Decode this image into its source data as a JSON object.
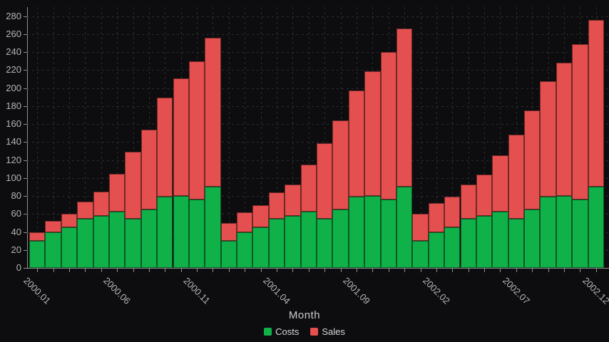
{
  "chart_data": {
    "type": "bar",
    "stacked": true,
    "title": "",
    "xlabel": "Month",
    "ylabel": "",
    "grid": true,
    "legend_position": "bottom",
    "ylim": [
      0,
      290
    ],
    "y_ticks": [
      0,
      20,
      40,
      60,
      80,
      100,
      120,
      140,
      160,
      180,
      200,
      220,
      240,
      260,
      280
    ],
    "categories": [
      "2000.01",
      "2000.02",
      "2000.03",
      "2000.04",
      "2000.05",
      "2000.06",
      "2000.07",
      "2000.08",
      "2000.09",
      "2000.10",
      "2000.11",
      "2000.12",
      "2001.01",
      "2001.02",
      "2001.03",
      "2001.04",
      "2001.05",
      "2001.06",
      "2001.07",
      "2001.08",
      "2001.09",
      "2001.10",
      "2001.11",
      "2001.12",
      "2002.01",
      "2002.02",
      "2002.03",
      "2002.04",
      "2002.05",
      "2002.06",
      "2002.07",
      "2002.08",
      "2002.09",
      "2002.10",
      "2002.11",
      "2002.12"
    ],
    "x_labeled_indices": [
      0,
      5,
      10,
      15,
      20,
      25,
      30,
      35
    ],
    "series": [
      {
        "name": "Costs",
        "color": "#11b14a",
        "values": [
          30,
          40,
          45,
          55,
          58,
          63,
          55,
          65,
          79,
          80,
          76,
          90,
          30,
          40,
          45,
          55,
          58,
          63,
          55,
          65,
          79,
          80,
          76,
          90,
          30,
          40,
          45,
          55,
          58,
          63,
          55,
          65,
          79,
          80,
          76,
          90
        ]
      },
      {
        "name": "Sales",
        "color": "#e4504f",
        "values": [
          10,
          12,
          15,
          19,
          27,
          42,
          74,
          89,
          110,
          131,
          154,
          166,
          20,
          22,
          25,
          29,
          35,
          52,
          84,
          99,
          118,
          139,
          164,
          176,
          30,
          32,
          34,
          38,
          46,
          62,
          93,
          110,
          129,
          148,
          173,
          186
        ]
      }
    ]
  },
  "colors": {
    "background": "#0d0d0f",
    "axis": "#8f8f8f",
    "gridline": "#2c2c2f",
    "tick_label": "#b5b5b5",
    "axis_title": "#cccccc",
    "legend_text": "#d6d6d6"
  }
}
